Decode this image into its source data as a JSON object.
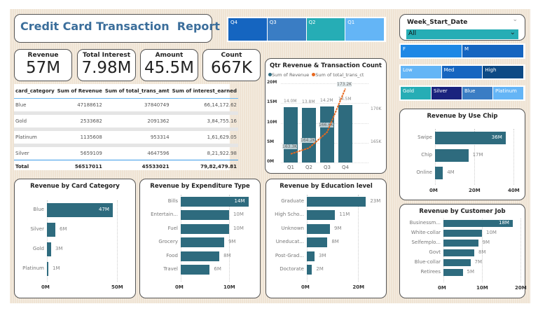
{
  "title": "Credit Card Transaction  Report",
  "quarter_slicer": [
    {
      "label": "Q4",
      "color": "#1565c0"
    },
    {
      "label": "Q3",
      "color": "#3a7dc4"
    },
    {
      "label": "Q2",
      "color": "#26adb5"
    },
    {
      "label": "Q1",
      "color": "#64b5f6"
    }
  ],
  "kpis": [
    {
      "label": "Revenue",
      "value": "57M"
    },
    {
      "label": "Total Interest",
      "value": "7.98M"
    },
    {
      "label": "Amount",
      "value": "45.5M"
    },
    {
      "label": "Count",
      "value": "667K"
    }
  ],
  "table": {
    "headers": [
      "card_category",
      "Sum of Revenue",
      "Sum of total_trans_amt",
      "Sum of interest_earned"
    ],
    "rows": [
      [
        "Blue",
        "47188612",
        "37840749",
        "66,14,172.62"
      ],
      [
        "Gold",
        "2533682",
        "2091362",
        "3,84,755.16"
      ],
      [
        "Platinum",
        "1135608",
        "953314",
        "1,61,629.05"
      ],
      [
        "Silver",
        "5659109",
        "4647596",
        "8,21,922.98"
      ]
    ],
    "total": [
      "Total",
      "56517011",
      "45533021",
      "79,82,479.81"
    ]
  },
  "week_slicer": {
    "title": "Week_Start_Date",
    "value": "All"
  },
  "gender_slicer": [
    {
      "label": "F",
      "color": "#1e88e5"
    },
    {
      "label": "M",
      "color": "#1565c0"
    }
  ],
  "income_slicer": [
    {
      "label": "Low",
      "color": "#64b5f6"
    },
    {
      "label": "Med",
      "color": "#1565c0"
    },
    {
      "label": "High",
      "color": "#0d4a85"
    }
  ],
  "card_slicer": [
    {
      "label": "Gold",
      "color": "#26adb5"
    },
    {
      "label": "Silver",
      "color": "#1a237e"
    },
    {
      "label": "Blue",
      "color": "#3a7dc4"
    },
    {
      "label": "Platinum",
      "color": "#64b5f6"
    }
  ],
  "chart_data": [
    {
      "id": "qtr",
      "type": "bar+line",
      "title": "Qtr Revenue & Transaction Count",
      "categories": [
        "Q1",
        "Q2",
        "Q3",
        "Q4"
      ],
      "series": [
        {
          "name": "Sum of Revenue",
          "values": [
            14.0,
            13.8,
            14.2,
            14.5
          ],
          "labels": [
            "14.0M",
            "13.8M",
            "14.2M",
            "14.5M"
          ],
          "color": "#2e6b7e"
        },
        {
          "name": "Sum of total_trans_ct",
          "values": [
            163.3,
            164.2,
            166.6,
            173.2
          ],
          "labels": [
            "163.3K",
            "164.2K",
            "166.6K",
            "173.2K"
          ],
          "color": "#e8681e"
        }
      ],
      "y_ticks": [
        "0M",
        "5M",
        "10M",
        "15M",
        "20M"
      ],
      "ylim": [
        0,
        20
      ],
      "y2_ticks": [
        "165K",
        "170K"
      ],
      "y2lim": [
        162,
        174
      ]
    },
    {
      "id": "card",
      "type": "bar",
      "orientation": "horizontal",
      "title": "Revenue by Card Category",
      "categories": [
        "Blue",
        "Silver",
        "Gold",
        "Platinum"
      ],
      "values": [
        47,
        6,
        3,
        1
      ],
      "labels": [
        "47M",
        "6M",
        "3M",
        "1M"
      ],
      "x_ticks": [
        "0M",
        "50M"
      ],
      "xlim": [
        0,
        50
      ]
    },
    {
      "id": "exp",
      "type": "bar",
      "orientation": "horizontal",
      "title": "Revenue by Expenditure Type",
      "categories": [
        "Bills",
        "Entertain...",
        "Fuel",
        "Grocery",
        "Food",
        "Travel"
      ],
      "values": [
        14,
        10,
        10,
        9,
        8,
        6
      ],
      "labels": [
        "14M",
        "10M",
        "10M",
        "9M",
        "8M",
        "6M"
      ],
      "x_ticks": [
        "0M",
        "10M"
      ],
      "xlim": [
        0,
        14.5
      ]
    },
    {
      "id": "edu",
      "type": "bar",
      "orientation": "horizontal",
      "title": "Revenue by Education level",
      "categories": [
        "Graduate",
        "High Scho...",
        "Unknown",
        "Uneducat...",
        "Post-Grad...",
        "Doctorate"
      ],
      "values": [
        23,
        11,
        9,
        8,
        3,
        2
      ],
      "labels": [
        "23M",
        "11M",
        "9M",
        "8M",
        "3M",
        "2M"
      ],
      "x_ticks": [
        "0M",
        "20M"
      ],
      "xlim": [
        0,
        30
      ]
    },
    {
      "id": "chip",
      "type": "bar",
      "orientation": "horizontal",
      "title": "Revenue by Use Chip",
      "categories": [
        "Swipe",
        "Chip",
        "Online"
      ],
      "values": [
        36,
        17,
        4
      ],
      "labels": [
        "36M",
        "17M",
        "4M"
      ],
      "x_ticks": [
        "0M",
        "20M",
        "40M"
      ],
      "xlim": [
        0,
        40
      ]
    },
    {
      "id": "job",
      "type": "bar",
      "orientation": "horizontal",
      "title": "Revenue by Customer Job",
      "categories": [
        "Businessm...",
        "White-collar",
        "Selfemplo...",
        "Govt",
        "Blue-collar",
        "Retirees"
      ],
      "values": [
        18,
        10,
        9,
        8,
        7,
        5
      ],
      "labels": [
        "18M",
        "10M",
        "9M",
        "8M",
        "7M",
        "5M"
      ],
      "x_ticks": [
        "0M",
        "10M",
        "20M"
      ],
      "xlim": [
        0,
        20
      ]
    }
  ]
}
